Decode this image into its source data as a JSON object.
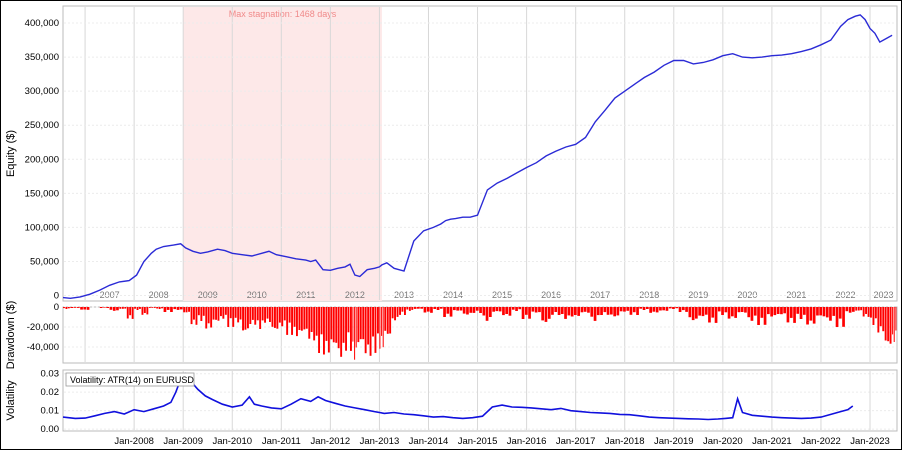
{
  "colors": {
    "equity_line": "#2b2bd6",
    "drawdown_fill": "#ff0000",
    "volatility_line": "#1010dd",
    "stagnation_fill": "#fde8e8",
    "stagnation_text": "#f08a8a",
    "grid": "#d8d8d8",
    "year_band_text": "#777777"
  },
  "chart_data": [
    {
      "type": "line",
      "panel": "equity",
      "ylabel": "Equity ($)",
      "y_ticks": [
        "0",
        "50,000",
        "100,000",
        "150,000",
        "200,000",
        "250,000",
        "300,000",
        "350,000",
        "400,000"
      ],
      "ylim": [
        -8000,
        425000
      ],
      "xlim": [
        2006.55,
        2023.55
      ],
      "grid": true,
      "year_labels": [
        "2007",
        "2008",
        "2009",
        "2010",
        "2011",
        "2012",
        "2013",
        "2014",
        "2015",
        "2016",
        "2017",
        "2018",
        "2019",
        "2020",
        "2021",
        "2022",
        "2023"
      ],
      "stagnation": {
        "label": "Max stagnation: 1468 days",
        "start": 2009.0,
        "end": 2013.05
      },
      "series": [
        {
          "x": [
            2006.55,
            2006.7,
            2006.9,
            2007.1,
            2007.3,
            2007.5,
            2007.7,
            2007.9,
            2008.05,
            2008.2,
            2008.35,
            2008.45,
            2008.6,
            2008.8,
            2008.95,
            2009.05,
            2009.2,
            2009.35,
            2009.5,
            2009.7,
            2009.85,
            2010.0,
            2010.2,
            2010.4,
            2010.6,
            2010.75,
            2010.9,
            2011.1,
            2011.3,
            2011.5,
            2011.6,
            2011.7,
            2011.85,
            2012.0,
            2012.15,
            2012.3,
            2012.4,
            2012.5,
            2012.6,
            2012.75,
            2012.9,
            2013.0,
            2013.05,
            2013.15,
            2013.3,
            2013.5,
            2013.7,
            2013.9,
            2014.1,
            2014.25,
            2014.35,
            2014.45,
            2014.55,
            2014.7,
            2014.85,
            2015.0,
            2015.2,
            2015.4,
            2015.6,
            2015.8,
            2016.0,
            2016.2,
            2016.4,
            2016.6,
            2016.8,
            2017.0,
            2017.2,
            2017.4,
            2017.6,
            2017.8,
            2018.0,
            2018.2,
            2018.4,
            2018.6,
            2018.8,
            2019.0,
            2019.2,
            2019.4,
            2019.6,
            2019.8,
            2020.0,
            2020.2,
            2020.4,
            2020.6,
            2020.8,
            2021.0,
            2021.2,
            2021.4,
            2021.6,
            2021.8,
            2022.0,
            2022.2,
            2022.4,
            2022.55,
            2022.7,
            2022.8,
            2022.9,
            2023.0,
            2023.1,
            2023.2,
            2023.35,
            2023.45
          ],
          "y": [
            -3000,
            -4000,
            -2000,
            2000,
            8000,
            15000,
            20000,
            22000,
            30000,
            50000,
            62000,
            68000,
            72000,
            74000,
            76000,
            70000,
            65000,
            62000,
            64000,
            68000,
            66000,
            62000,
            60000,
            58000,
            62000,
            65000,
            60000,
            57000,
            54000,
            52000,
            50000,
            52000,
            38000,
            37000,
            40000,
            42000,
            46000,
            30000,
            28000,
            38000,
            40000,
            42000,
            45000,
            48000,
            40000,
            36000,
            80000,
            95000,
            100000,
            105000,
            110000,
            112000,
            113000,
            115000,
            115000,
            118000,
            155000,
            165000,
            172000,
            180000,
            188000,
            195000,
            205000,
            212000,
            218000,
            222000,
            232000,
            255000,
            272000,
            290000,
            300000,
            310000,
            320000,
            328000,
            338000,
            345000,
            345000,
            340000,
            342000,
            346000,
            352000,
            355000,
            350000,
            349000,
            350000,
            352000,
            353000,
            355000,
            358000,
            362000,
            368000,
            375000,
            395000,
            405000,
            410000,
            412000,
            405000,
            392000,
            385000,
            372000,
            378000,
            382000
          ]
        }
      ]
    },
    {
      "type": "bar",
      "panel": "drawdown",
      "ylabel": "Drawdown ($)",
      "y_ticks": [
        "0",
        "-20,000",
        "-40,000"
      ],
      "ylim": [
        -56000,
        0
      ],
      "xlim": [
        2006.55,
        2023.55
      ],
      "grid": true,
      "series": [
        {
          "x": [
            2006.55,
            2006.7,
            2006.9,
            2007.1,
            2007.3,
            2007.5,
            2007.7,
            2007.85,
            2008.0,
            2008.15,
            2008.3,
            2008.45,
            2008.6,
            2008.8,
            2009.0,
            2009.15,
            2009.3,
            2009.45,
            2009.6,
            2009.75,
            2009.9,
            2010.05,
            2010.2,
            2010.35,
            2010.5,
            2010.65,
            2010.8,
            2010.95,
            2011.1,
            2011.25,
            2011.4,
            2011.55,
            2011.7,
            2011.85,
            2012.0,
            2012.15,
            2012.3,
            2012.45,
            2012.55,
            2012.7,
            2012.85,
            2013.0,
            2013.1,
            2013.25,
            2013.4,
            2013.55,
            2013.7,
            2013.9,
            2014.1,
            2014.3,
            2014.5,
            2014.7,
            2014.9,
            2015.1,
            2015.3,
            2015.5,
            2015.7,
            2015.9,
            2016.1,
            2016.3,
            2016.5,
            2016.7,
            2016.9,
            2017.1,
            2017.3,
            2017.5,
            2017.7,
            2017.9,
            2018.1,
            2018.3,
            2018.5,
            2018.7,
            2018.9,
            2019.1,
            2019.3,
            2019.5,
            2019.7,
            2019.9,
            2020.1,
            2020.3,
            2020.5,
            2020.7,
            2020.9,
            2021.1,
            2021.3,
            2021.5,
            2021.7,
            2021.9,
            2022.1,
            2022.3,
            2022.5,
            2022.7,
            2022.85,
            2023.0,
            2023.15,
            2023.3,
            2023.45
          ],
          "values": [
            -2000,
            -1000,
            -3000,
            0,
            -1000,
            -4000,
            -2000,
            -12000,
            -3000,
            -8000,
            -1000,
            -2000,
            -5000,
            -3000,
            -6000,
            -18000,
            -14000,
            -22000,
            -15000,
            -12000,
            -20000,
            -16000,
            -26000,
            -18000,
            -22000,
            -16000,
            -24000,
            -20000,
            -28000,
            -30000,
            -26000,
            -34000,
            -46000,
            -48000,
            -40000,
            -52000,
            -44000,
            -54000,
            -38000,
            -50000,
            -46000,
            -42000,
            -30000,
            -14000,
            -8000,
            -4000,
            -2000,
            -6000,
            -3000,
            -10000,
            -4000,
            -8000,
            -6000,
            -14000,
            -5000,
            -9000,
            -4000,
            -12000,
            -6000,
            -16000,
            -8000,
            -12000,
            -10000,
            -6000,
            -14000,
            -8000,
            -10000,
            -5000,
            -8000,
            -3000,
            -6000,
            -4000,
            -2000,
            -5000,
            -14000,
            -10000,
            -16000,
            -8000,
            -12000,
            -6000,
            -14000,
            -18000,
            -10000,
            -8000,
            -16000,
            -12000,
            -18000,
            -10000,
            -14000,
            -20000,
            -6000,
            -4000,
            -10000,
            -18000,
            -26000,
            -40000,
            -36000
          ]
        }
      ]
    },
    {
      "type": "line",
      "panel": "volatility",
      "ylabel": "Volatility",
      "legend": "Volatility: ATR(14) on EURUSD",
      "y_ticks": [
        "0.00",
        "0.01",
        "0.02",
        "0.03"
      ],
      "ylim": [
        -0.001,
        0.032
      ],
      "xlim": [
        2006.55,
        2023.55
      ],
      "grid": true,
      "x_ticks": [
        "Jan-2008",
        "Jan-2009",
        "Jan-2010",
        "Jan-2011",
        "Jan-2012",
        "Jan-2013",
        "Jan-2014",
        "Jan-2015",
        "Jan-2016",
        "Jan-2017",
        "Jan-2018",
        "Jan-2019",
        "Jan-2020",
        "Jan-2021",
        "Jan-2022",
        "Jan-2023"
      ],
      "x_tick_values": [
        2008,
        2009,
        2010,
        2011,
        2012,
        2013,
        2014,
        2015,
        2016,
        2017,
        2018,
        2019,
        2020,
        2021,
        2022,
        2023
      ],
      "series": [
        {
          "x": [
            2006.55,
            2006.8,
            2007.0,
            2007.2,
            2007.4,
            2007.6,
            2007.8,
            2008.0,
            2008.2,
            2008.4,
            2008.6,
            2008.75,
            2008.85,
            2008.95,
            2009.05,
            2009.15,
            2009.3,
            2009.45,
            2009.6,
            2009.8,
            2010.0,
            2010.2,
            2010.35,
            2010.45,
            2010.6,
            2010.8,
            2011.0,
            2011.2,
            2011.4,
            2011.6,
            2011.75,
            2011.9,
            2012.1,
            2012.3,
            2012.5,
            2012.7,
            2012.9,
            2013.1,
            2013.3,
            2013.5,
            2013.7,
            2013.9,
            2014.1,
            2014.3,
            2014.5,
            2014.7,
            2014.9,
            2015.1,
            2015.3,
            2015.5,
            2015.7,
            2015.9,
            2016.1,
            2016.3,
            2016.5,
            2016.7,
            2016.9,
            2017.1,
            2017.3,
            2017.5,
            2017.7,
            2017.9,
            2018.1,
            2018.3,
            2018.5,
            2018.7,
            2018.9,
            2019.1,
            2019.3,
            2019.5,
            2019.7,
            2019.9,
            2020.05,
            2020.2,
            2020.3,
            2020.4,
            2020.6,
            2020.8,
            2021.0,
            2021.2,
            2021.4,
            2021.6,
            2021.8,
            2022.0,
            2022.2,
            2022.4,
            2022.55,
            2022.65
          ],
          "y": [
            0.0065,
            0.0058,
            0.006,
            0.0072,
            0.0085,
            0.0095,
            0.0082,
            0.0105,
            0.0095,
            0.011,
            0.0125,
            0.0145,
            0.02,
            0.027,
            0.03,
            0.026,
            0.0215,
            0.018,
            0.016,
            0.0135,
            0.012,
            0.013,
            0.0175,
            0.0135,
            0.0125,
            0.0115,
            0.011,
            0.0135,
            0.0165,
            0.015,
            0.0175,
            0.0155,
            0.014,
            0.0125,
            0.0115,
            0.0105,
            0.0095,
            0.0085,
            0.009,
            0.0082,
            0.0078,
            0.0072,
            0.0065,
            0.0068,
            0.0062,
            0.0058,
            0.0062,
            0.007,
            0.012,
            0.013,
            0.012,
            0.0118,
            0.0115,
            0.011,
            0.0105,
            0.0112,
            0.01,
            0.0095,
            0.009,
            0.0088,
            0.0085,
            0.008,
            0.0078,
            0.0072,
            0.0065,
            0.0062,
            0.006,
            0.0058,
            0.0056,
            0.0055,
            0.0052,
            0.0055,
            0.0058,
            0.0062,
            0.0165,
            0.009,
            0.0075,
            0.007,
            0.0065,
            0.0062,
            0.006,
            0.0058,
            0.006,
            0.0065,
            0.008,
            0.0095,
            0.0105,
            0.0125
          ]
        }
      ]
    }
  ]
}
